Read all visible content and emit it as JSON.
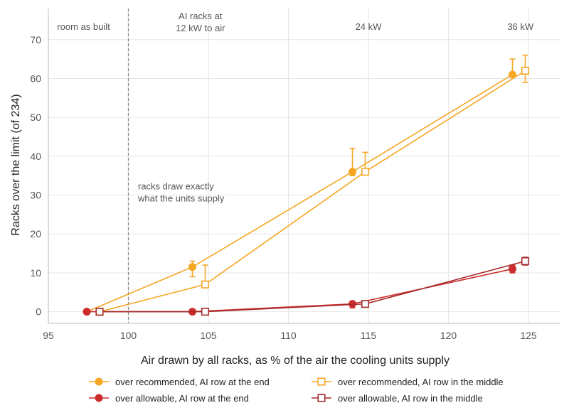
{
  "chart_data": {
    "type": "line",
    "xlabel": "Air drawn by all racks, as % of the air the cooling units supply",
    "ylabel": "Racks over the limit (of 234)",
    "xlim": [
      95,
      127
    ],
    "ylim": [
      -3,
      78
    ],
    "x_ticks": [
      95,
      100,
      105,
      110,
      115,
      120,
      125
    ],
    "y_ticks": [
      0,
      10,
      20,
      30,
      40,
      50,
      60,
      70
    ],
    "grid": true,
    "legend_position": "bottom",
    "reference_line": {
      "x": 100,
      "style": "dashed"
    },
    "annotations": [
      {
        "lines": [
          "room as built"
        ],
        "x": 97.2,
        "y": 72.5,
        "anchor": "middle"
      },
      {
        "lines": [
          "AI racks at",
          "12 kW to air"
        ],
        "x": 104.5,
        "y": 75.3,
        "anchor": "middle"
      },
      {
        "lines": [
          "24 kW"
        ],
        "x": 115,
        "y": 72.5,
        "anchor": "middle"
      },
      {
        "lines": [
          "36 kW"
        ],
        "x": 124.5,
        "y": 72.5,
        "anchor": "middle"
      },
      {
        "lines": [
          "racks draw exactly",
          "what the units supply"
        ],
        "x": 100.6,
        "y": 31.5,
        "anchor": "start"
      }
    ],
    "series": [
      {
        "name": "over recommended, AI row at the end",
        "color": "#f5a623",
        "marker": "circle-filled",
        "points": [
          {
            "x": 97.4,
            "y": 0,
            "err": [
              0,
              0
            ]
          },
          {
            "x": 104,
            "y": 11.5,
            "err": [
              9,
              13
            ]
          },
          {
            "x": 114,
            "y": 36,
            "err": [
              35,
              42
            ]
          },
          {
            "x": 124,
            "y": 61,
            "err": [
              61,
              65
            ]
          }
        ]
      },
      {
        "name": "over recommended, AI row in the middle",
        "color": "#f5a623",
        "marker": "square-open",
        "points": [
          {
            "x": 98.2,
            "y": 0,
            "err": [
              0,
              0
            ]
          },
          {
            "x": 104.8,
            "y": 7,
            "err": [
              7,
              12
            ]
          },
          {
            "x": 114.8,
            "y": 36,
            "err": [
              36,
              41
            ]
          },
          {
            "x": 124.8,
            "y": 62,
            "err": [
              59,
              66
            ]
          }
        ]
      },
      {
        "name": "over allowable, AI row at the end",
        "color": "#cc2c2c",
        "marker": "circle-filled",
        "points": [
          {
            "x": 97.4,
            "y": 0,
            "err": [
              0,
              0
            ]
          },
          {
            "x": 104,
            "y": 0,
            "err": [
              0,
              0
            ]
          },
          {
            "x": 114,
            "y": 2,
            "err": [
              1,
              2.5
            ]
          },
          {
            "x": 124,
            "y": 11,
            "err": [
              10,
              12
            ]
          }
        ]
      },
      {
        "name": "over allowable, AI row in the middle",
        "color": "#a52a2a",
        "marker": "square-open",
        "points": [
          {
            "x": 98.2,
            "y": 0,
            "err": [
              0,
              0
            ]
          },
          {
            "x": 104.8,
            "y": 0,
            "err": [
              0,
              0
            ]
          },
          {
            "x": 114.8,
            "y": 2,
            "err": [
              1.5,
              2.5
            ]
          },
          {
            "x": 124.8,
            "y": 13,
            "err": [
              12,
              14
            ]
          }
        ]
      }
    ]
  }
}
